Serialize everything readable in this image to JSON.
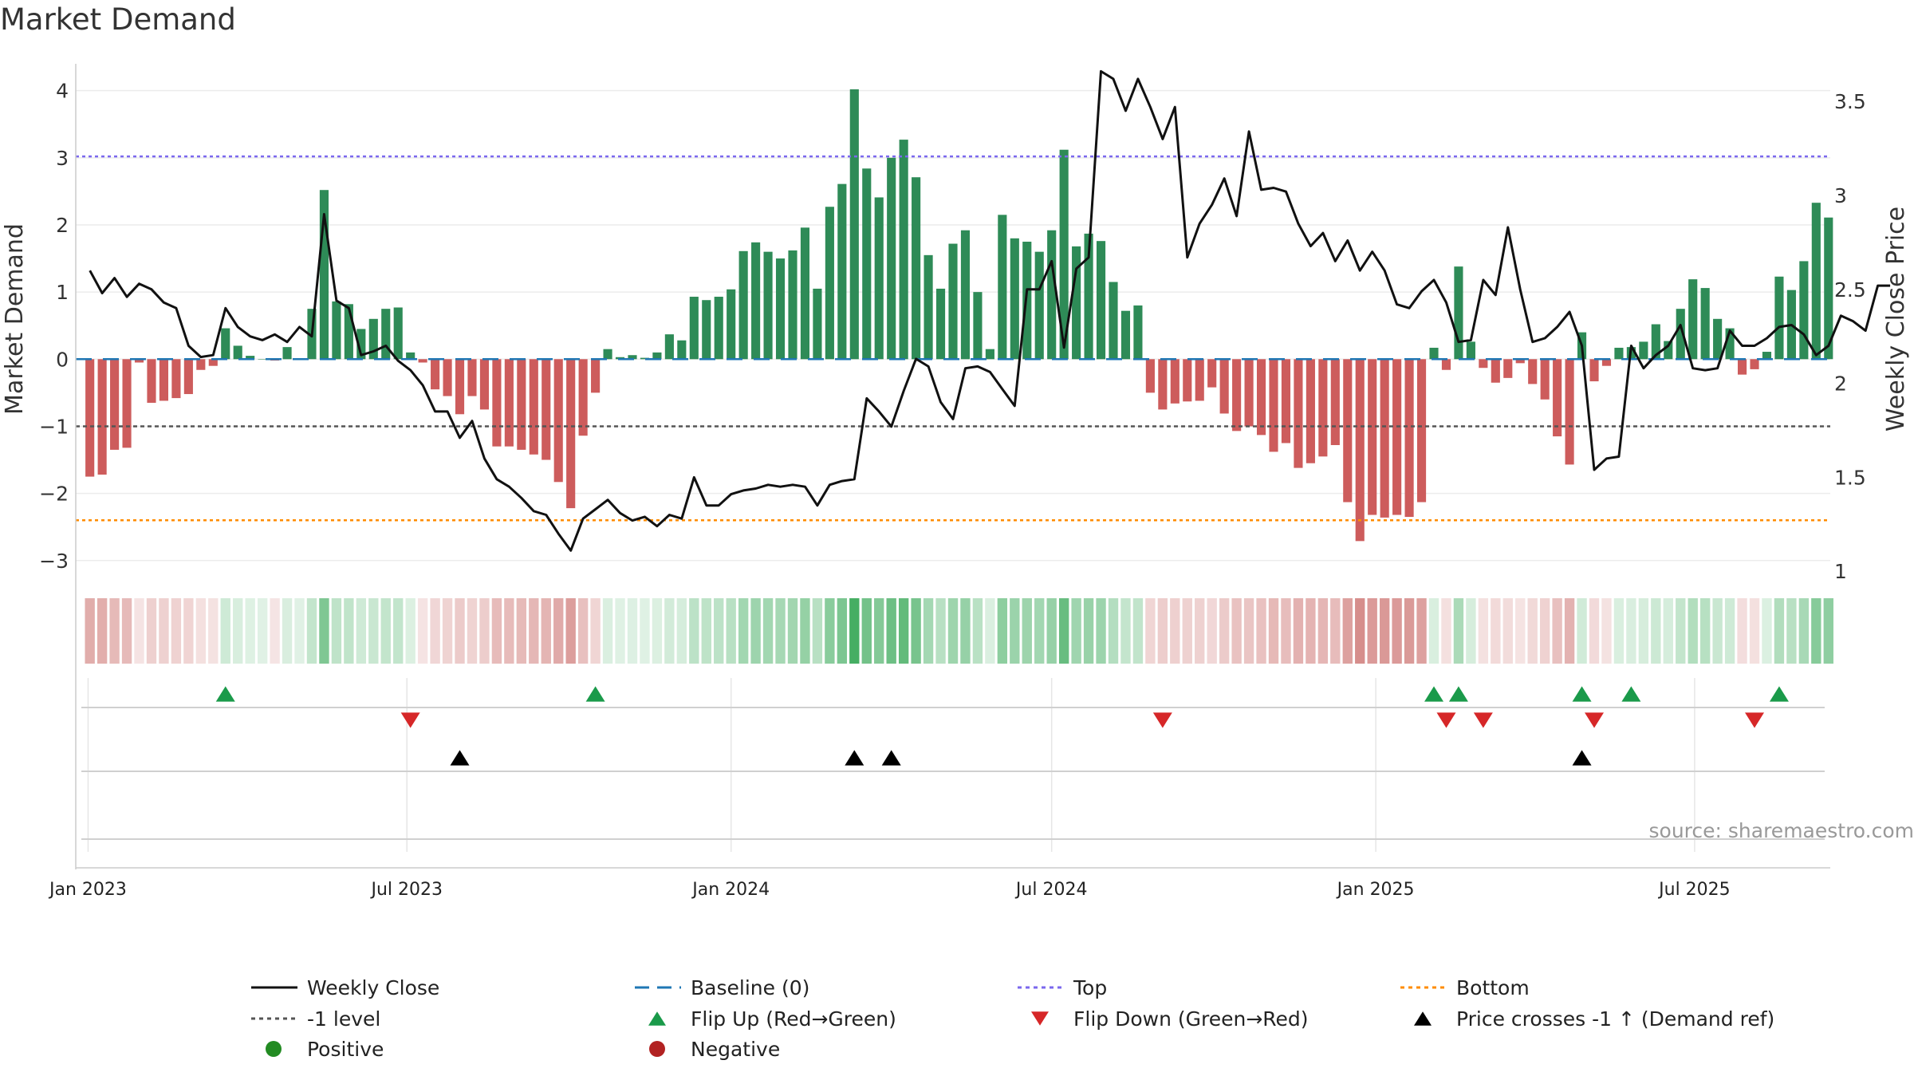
{
  "title": "Market Demand",
  "source_note": "source: sharemaestro.com",
  "chart_data": {
    "type": "bar",
    "title": "Market Demand",
    "ylabel": "Market Demand",
    "y2label": "Weekly Close Price",
    "ylim": [
      -3.3,
      4.4
    ],
    "y2lim": [
      0.95,
      3.7
    ],
    "y_ticks": [
      4,
      3,
      2,
      1,
      0,
      -1,
      -2,
      -3
    ],
    "y_tick_labels": [
      "4",
      "3",
      "2",
      "1",
      "0",
      "−1",
      "−2",
      "−3"
    ],
    "y2_ticks": [
      3.5,
      3,
      2.5,
      2,
      1.5,
      1
    ],
    "y2_tick_labels": [
      "3.5",
      "3",
      "2.5",
      "2",
      "1.5",
      "1"
    ],
    "x_start": "2022-12-25",
    "x_end": "2025-09-16",
    "x_ticks": [
      "2023-01-01",
      "2023-07-01",
      "2024-01-01",
      "2024-07-01",
      "2025-01-01",
      "2025-07-01"
    ],
    "x_tick_labels": [
      "Jan 2023",
      "Jul 2023",
      "Jan 2024",
      "Jul 2024",
      "Jan 2025",
      "Jul 2025"
    ],
    "grid": true,
    "legend_position": "bottom",
    "reference_lines": {
      "top": 3.02,
      "bottom": -2.4,
      "minus_one": -1,
      "baseline": 0
    },
    "bar_values": [
      -1.75,
      -1.72,
      -1.35,
      -1.32,
      -0.05,
      -0.65,
      -0.62,
      -0.58,
      -0.52,
      -0.16,
      -0.1,
      0.46,
      0.2,
      0.05,
      0.0,
      -0.02,
      0.18,
      0.0,
      0.75,
      2.52,
      0.86,
      0.82,
      0.45,
      0.6,
      0.75,
      0.77,
      0.1,
      -0.05,
      -0.45,
      -0.55,
      -0.82,
      -0.55,
      -0.75,
      -1.3,
      -1.3,
      -1.35,
      -1.42,
      -1.5,
      -1.83,
      -2.22,
      -1.14,
      -0.5,
      0.15,
      0.03,
      0.06,
      0.02,
      0.1,
      0.37,
      0.28,
      0.93,
      0.88,
      0.93,
      1.04,
      1.61,
      1.74,
      1.6,
      1.5,
      1.62,
      1.96,
      1.05,
      2.27,
      2.61,
      4.02,
      2.84,
      2.41,
      3.0,
      3.27,
      2.71,
      1.55,
      1.05,
      1.72,
      1.92,
      1.0,
      0.15,
      2.15,
      1.8,
      1.75,
      1.6,
      1.92,
      3.12,
      1.68,
      1.87,
      1.76,
      1.15,
      0.72,
      0.8,
      -0.5,
      -0.75,
      -0.66,
      -0.63,
      -0.62,
      -0.42,
      -0.81,
      -1.07,
      -1.0,
      -1.13,
      -1.38,
      -1.25,
      -1.62,
      -1.55,
      -1.45,
      -1.28,
      -2.13,
      -2.71,
      -2.32,
      -2.36,
      -2.32,
      -2.35,
      -2.13,
      0.17,
      -0.16,
      1.38,
      0.26,
      -0.13,
      -0.35,
      -0.28,
      -0.06,
      -0.37,
      -0.6,
      -1.15,
      -1.57,
      0.4,
      -0.33,
      -0.1,
      0.17,
      0.18,
      0.26,
      0.52,
      0.27,
      0.75,
      1.19,
      1.06,
      0.6,
      0.46,
      -0.23,
      -0.15,
      0.11,
      1.23,
      1.03,
      1.46,
      2.33,
      2.11
    ],
    "price_values": [
      2.6,
      2.48,
      2.56,
      2.46,
      2.53,
      2.5,
      2.43,
      2.4,
      2.2,
      2.14,
      2.15,
      2.4,
      2.3,
      2.25,
      2.23,
      2.26,
      2.22,
      2.3,
      2.25,
      2.9,
      2.44,
      2.4,
      2.15,
      2.17,
      2.2,
      2.12,
      2.07,
      1.99,
      1.85,
      1.85,
      1.71,
      1.8,
      1.6,
      1.49,
      1.45,
      1.39,
      1.32,
      1.3,
      1.2,
      1.11,
      1.28,
      1.33,
      1.38,
      1.31,
      1.27,
      1.29,
      1.24,
      1.3,
      1.28,
      1.5,
      1.35,
      1.35,
      1.41,
      1.43,
      1.44,
      1.46,
      1.45,
      1.46,
      1.45,
      1.35,
      1.46,
      1.48,
      1.49,
      1.92,
      1.85,
      1.77,
      1.96,
      2.13,
      2.09,
      1.9,
      1.81,
      2.08,
      2.09,
      2.06,
      1.97,
      1.88,
      2.5,
      2.5,
      2.65,
      2.19,
      2.61,
      2.67,
      3.66,
      3.62,
      3.45,
      3.62,
      3.47,
      3.3,
      3.47,
      2.67,
      2.85,
      2.95,
      3.09,
      2.89,
      3.34,
      3.03,
      3.04,
      3.02,
      2.85,
      2.73,
      2.8,
      2.65,
      2.76,
      2.6,
      2.7,
      2.6,
      2.42,
      2.4,
      2.49,
      2.55,
      2.43,
      2.22,
      2.23,
      2.55,
      2.47,
      2.83,
      2.5,
      2.22,
      2.24,
      2.3,
      2.38,
      2.2,
      1.54,
      1.6,
      1.61,
      2.2,
      2.08,
      2.15,
      2.2,
      2.31,
      2.08,
      2.07,
      2.08,
      2.28,
      2.2,
      2.2,
      2.24,
      2.3,
      2.31,
      2.26,
      2.15,
      2.2,
      2.36,
      2.33,
      2.28,
      2.52,
      2.52
    ],
    "heat_strip_values": [
      -1.75,
      -1.72,
      -1.35,
      -1.32,
      -0.05,
      -0.65,
      -0.62,
      -0.58,
      -0.52,
      -0.16,
      -0.1,
      0.46,
      0.2,
      0.05,
      0.0,
      -0.02,
      0.18,
      0.0,
      0.75,
      2.52,
      0.86,
      0.82,
      0.45,
      0.6,
      0.75,
      0.77,
      0.1,
      -0.05,
      -0.45,
      -0.55,
      -0.82,
      -0.55,
      -0.75,
      -1.3,
      -1.3,
      -1.35,
      -1.42,
      -1.5,
      -1.83,
      -2.22,
      -1.14,
      -0.5,
      0.15,
      0.03,
      0.06,
      0.02,
      0.1,
      0.37,
      0.28,
      0.93,
      0.88,
      0.93,
      1.04,
      1.61,
      1.74,
      1.6,
      1.5,
      1.62,
      1.96,
      1.05,
      2.27,
      2.61,
      4.02,
      2.84,
      2.41,
      3.0,
      3.27,
      2.71,
      1.55,
      1.05,
      1.72,
      1.92,
      1.0,
      0.15,
      2.15,
      1.8,
      1.75,
      1.6,
      1.92,
      3.12,
      1.68,
      1.87,
      1.76,
      1.15,
      0.72,
      0.8,
      -0.5,
      -0.75,
      -0.66,
      -0.63,
      -0.62,
      -0.42,
      -0.81,
      -1.07,
      -1.0,
      -1.13,
      -1.38,
      -1.25,
      -1.62,
      -1.55,
      -1.45,
      -1.28,
      -2.13,
      -2.71,
      -2.32,
      -2.36,
      -2.32,
      -2.35,
      -2.13,
      0.17,
      -0.16,
      1.38,
      0.26,
      -0.13,
      -0.35,
      -0.28,
      -0.06,
      -0.37,
      -0.6,
      -1.15,
      -1.57,
      0.4,
      -0.33,
      -0.1,
      0.17,
      0.18,
      0.26,
      0.52,
      0.27,
      0.75,
      1.19,
      1.06,
      0.6,
      0.46,
      -0.23,
      -0.15,
      0.11,
      1.23,
      1.03,
      1.46,
      2.33,
      2.11
    ],
    "flip_up_weeks": [
      11,
      41,
      109,
      111,
      121,
      125,
      137
    ],
    "flip_down_weeks": [
      26,
      87,
      110,
      113,
      122,
      135
    ],
    "price_cross_weeks": [
      30,
      62,
      65,
      121
    ],
    "colors": {
      "positive": "#2e8b57",
      "negative": "#cd5c5c",
      "price_line": "#111111",
      "baseline": "#1f77b4",
      "top": "#7b68ee",
      "bottom": "#ff8c00",
      "minus_one": "#555555",
      "flip_up": "#1a9a4a",
      "flip_down": "#d62728",
      "price_cross": "#000000",
      "positive_dot": "#228b22",
      "negative_dot": "#b22222"
    },
    "legend": [
      {
        "label": "Weekly Close",
        "symbol": "line-solid",
        "color": "#111111"
      },
      {
        "label": "Baseline (0)",
        "symbol": "line-dashed",
        "color": "#1f77b4"
      },
      {
        "label": "Top",
        "symbol": "line-dotted",
        "color": "#7b68ee"
      },
      {
        "label": "Bottom",
        "symbol": "line-dotted",
        "color": "#ff8c00"
      },
      {
        "label": "-1 level",
        "symbol": "line-dotted",
        "color": "#555555"
      },
      {
        "label": "Flip Up (Red→Green)",
        "symbol": "triangle-up",
        "color": "#1a9a4a"
      },
      {
        "label": "Flip Down (Green→Red)",
        "symbol": "triangle-down",
        "color": "#d62728"
      },
      {
        "label": "Price crosses -1 ↑ (Demand ref)",
        "symbol": "triangle-up",
        "color": "#000000"
      },
      {
        "label": "Positive",
        "symbol": "dot",
        "color": "#228b22"
      },
      {
        "label": "Negative",
        "symbol": "dot",
        "color": "#b22222"
      }
    ]
  }
}
